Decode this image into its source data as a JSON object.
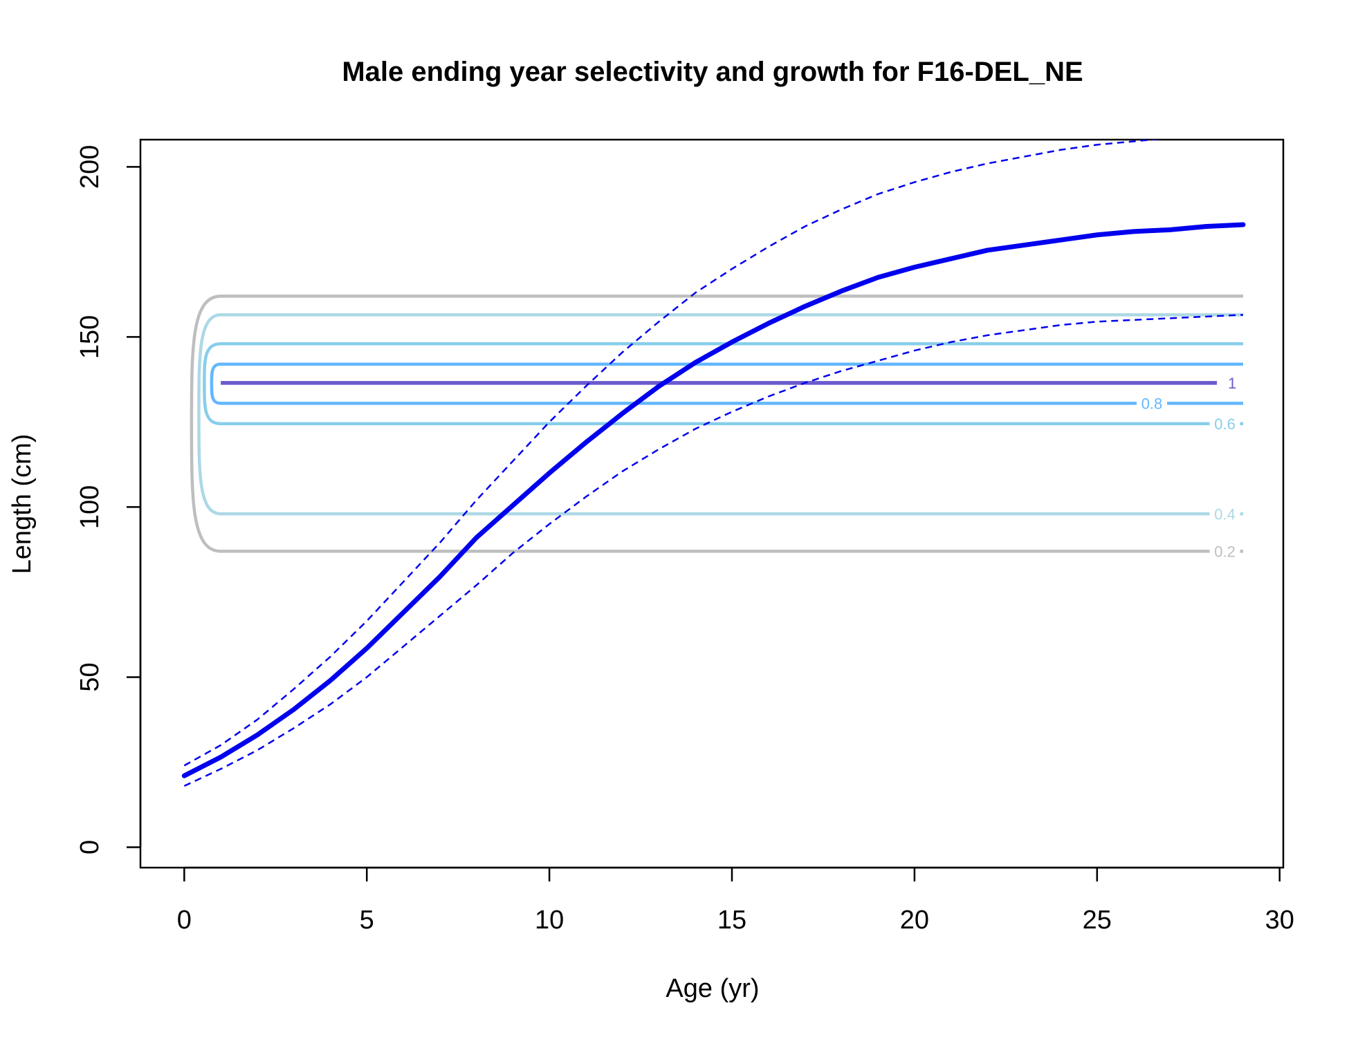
{
  "chart_data": {
    "type": "line",
    "title": "Male ending year selectivity and growth for F16-DEL_NE",
    "xlabel": "Age (yr)",
    "ylabel": "Length (cm)",
    "xlim": [
      -1.2,
      30.1
    ],
    "ylim": [
      -6,
      208
    ],
    "x_ticks": [
      0,
      5,
      10,
      15,
      20,
      25,
      30
    ],
    "y_ticks": [
      0,
      50,
      100,
      150,
      200
    ],
    "x_tick_labels": [
      "0",
      "5",
      "10",
      "15",
      "20",
      "25",
      "30"
    ],
    "y_tick_labels": [
      "0",
      "50",
      "100",
      "150",
      "200"
    ],
    "grid": false,
    "legend": "none",
    "series": [
      {
        "role": "mean",
        "style": "solid-thick",
        "color": "#0000ee",
        "x": [
          0,
          1,
          2,
          3,
          4,
          5,
          6,
          7,
          8,
          9,
          10,
          11,
          12,
          13,
          14,
          15,
          16,
          17,
          18,
          19,
          20,
          21,
          22,
          23,
          24,
          25,
          26,
          27,
          28,
          29
        ],
        "y": [
          21,
          26.5,
          33,
          40.5,
          49,
          58.5,
          69,
          79.5,
          91,
          100.5,
          110,
          119,
          127.5,
          135.5,
          142.5,
          148.5,
          154,
          159,
          163.5,
          167.5,
          170.5,
          173,
          175.5,
          177,
          178.5,
          180,
          181,
          181.5,
          182.5,
          183
        ]
      },
      {
        "role": "upper",
        "style": "dashed",
        "color": "#0000ee",
        "x": [
          0,
          1,
          2,
          3,
          4,
          5,
          6,
          7,
          8,
          9,
          10,
          11,
          12,
          13,
          14,
          15,
          16,
          17,
          18,
          19,
          20,
          21,
          22,
          23,
          24,
          25,
          26,
          27,
          28,
          29
        ],
        "y": [
          24,
          30,
          37.5,
          46.5,
          56,
          66.5,
          78,
          89.5,
          102,
          113.5,
          125,
          135.5,
          145.5,
          154.5,
          163,
          170,
          176.5,
          182.5,
          187.5,
          192,
          195.5,
          198.5,
          201,
          203,
          205,
          206.5,
          207.5,
          208.5,
          209,
          209.5
        ]
      },
      {
        "role": "lower",
        "style": "dashed",
        "color": "#0000ee",
        "x": [
          0,
          1,
          2,
          3,
          4,
          5,
          6,
          7,
          8,
          9,
          10,
          11,
          12,
          13,
          14,
          15,
          16,
          17,
          18,
          19,
          20,
          21,
          22,
          23,
          24,
          25,
          26,
          27,
          28,
          29
        ],
        "y": [
          18,
          23,
          28.5,
          35,
          42,
          50,
          59,
          68,
          77,
          86.5,
          95,
          103,
          110.5,
          117,
          123,
          128,
          132.5,
          136.5,
          140,
          143,
          146,
          148.5,
          150.5,
          152,
          153.5,
          154.5,
          155,
          155.5,
          156,
          156.5
        ]
      }
    ],
    "contours": [
      {
        "level": 0.2,
        "label": "0.2",
        "color": "#bebebe",
        "low": 87,
        "high": 162,
        "xstart": 1,
        "xend": 29,
        "xleft": 0.2,
        "label_x": 28.5
      },
      {
        "level": 0.4,
        "label": "0.4",
        "color": "#add8e6",
        "low": 98,
        "high": 156.5,
        "xstart": 1,
        "xend": 29,
        "xleft": 0.4,
        "label_x": 28.5
      },
      {
        "level": 0.6,
        "label": "0.6",
        "color": "#87ceeb",
        "low": 124.5,
        "high": 148,
        "xstart": 1,
        "xend": 29,
        "xleft": 0.55,
        "label_x": 28.5
      },
      {
        "level": 0.8,
        "label": "0.8",
        "color": "#63b8ff",
        "low": 130.5,
        "high": 142,
        "xstart": 1,
        "xend": 29,
        "xleft": 0.75,
        "label_x": 26.5
      },
      {
        "level": 1,
        "label": "1",
        "color": "#6a5acd",
        "low": 136.5,
        "high": 136.5,
        "xstart": 1,
        "xend": 29,
        "xleft": 1,
        "label_x": 28.7
      }
    ]
  }
}
